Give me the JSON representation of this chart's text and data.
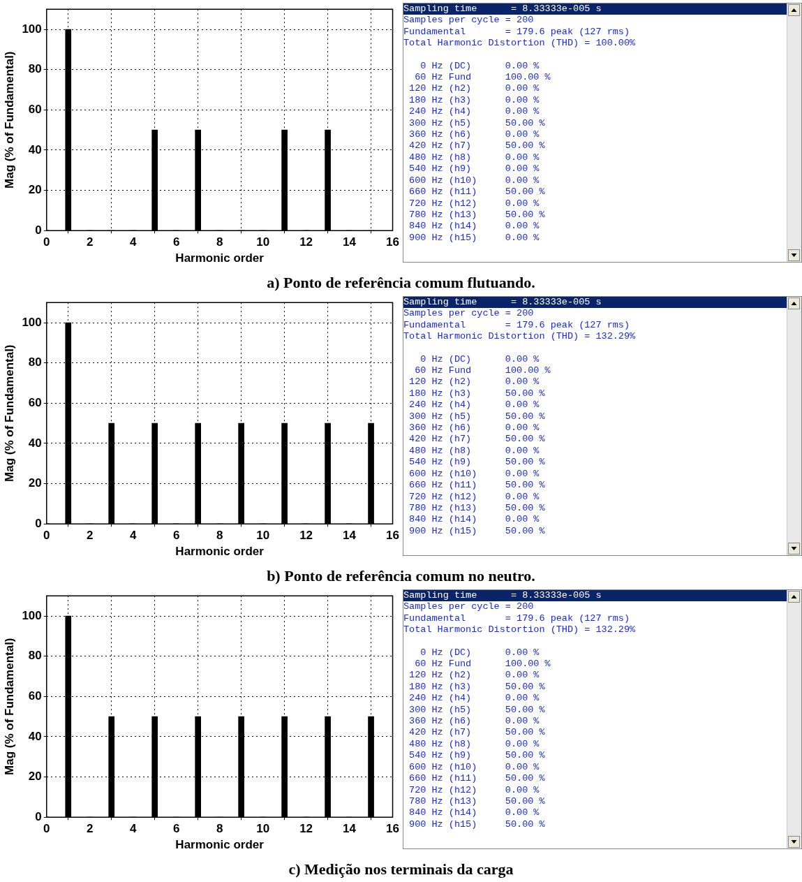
{
  "chart_data": [
    {
      "type": "bar",
      "x": [
        0,
        1,
        2,
        3,
        4,
        5,
        6,
        7,
        8,
        9,
        10,
        11,
        12,
        13,
        14,
        15
      ],
      "values": [
        0,
        100,
        0,
        0,
        0,
        50,
        0,
        50,
        0,
        0,
        0,
        50,
        0,
        50,
        0,
        0
      ],
      "color": "#000000",
      "xlim": [
        0,
        16
      ],
      "xticks": [
        0,
        2,
        4,
        6,
        8,
        10,
        12,
        14,
        16
      ],
      "ylim": [
        0,
        110
      ],
      "yticks": [
        0,
        20,
        40,
        60,
        80,
        100
      ],
      "xlabel": "Harmonic order",
      "ylabel": "Mag (% of Fundamental)",
      "grid": true,
      "annotations": [
        "a) Ponto de referência comum flutuando."
      ]
    },
    {
      "type": "other",
      "annotations": [
        "Sampling time      = 8.33333e-005 s",
        "Samples per cycle = 200",
        "Fundamental       = 179.6 peak (127 rms)",
        "Total Harmonic Distortion (THD) = 100.00%",
        "   0 Hz (DC)      0.00 %",
        "  60 Hz Fund      100.00 %",
        " 120 Hz (h2)      0.00 %",
        " 180 Hz (h3)      0.00 %",
        " 240 Hz (h4)      0.00 %",
        " 300 Hz (h5)      50.00 %",
        " 360 Hz (h6)      0.00 %",
        " 420 Hz (h7)      50.00 %",
        " 480 Hz (h8)      0.00 %",
        " 540 Hz (h9)      0.00 %",
        " 600 Hz (h10)     0.00 %",
        " 660 Hz (h11)     50.00 %",
        " 720 Hz (h12)     0.00 %",
        " 780 Hz (h13)     50.00 %",
        " 840 Hz (h14)     0.00 %",
        " 900 Hz (h15)     0.00 %"
      ]
    },
    {
      "type": "bar",
      "x": [
        0,
        1,
        2,
        3,
        4,
        5,
        6,
        7,
        8,
        9,
        10,
        11,
        12,
        13,
        14,
        15
      ],
      "values": [
        0,
        100,
        0,
        50,
        0,
        50,
        0,
        50,
        0,
        50,
        0,
        50,
        0,
        50,
        0,
        50
      ],
      "color": "#000000",
      "xlim": [
        0,
        16
      ],
      "xticks": [
        0,
        2,
        4,
        6,
        8,
        10,
        12,
        14,
        16
      ],
      "ylim": [
        0,
        110
      ],
      "yticks": [
        0,
        20,
        40,
        60,
        80,
        100
      ],
      "xlabel": "Harmonic order",
      "ylabel": "Mag (% of Fundamental)",
      "grid": true,
      "annotations": [
        "b) Ponto de referência comum no neutro."
      ]
    },
    {
      "type": "other",
      "annotations": [
        "Sampling time      = 8.33333e-005 s",
        "Samples per cycle = 200",
        "Fundamental       = 179.6 peak (127 rms)",
        "Total Harmonic Distortion (THD) = 132.29%",
        "   0 Hz (DC)      0.00 %",
        "  60 Hz Fund      100.00 %",
        " 120 Hz (h2)      0.00 %",
        " 180 Hz (h3)      50.00 %",
        " 240 Hz (h4)      0.00 %",
        " 300 Hz (h5)      50.00 %",
        " 360 Hz (h6)      0.00 %",
        " 420 Hz (h7)      50.00 %",
        " 480 Hz (h8)      0.00 %",
        " 540 Hz (h9)      50.00 %",
        " 600 Hz (h10)     0.00 %",
        " 660 Hz (h11)     50.00 %",
        " 720 Hz (h12)     0.00 %",
        " 780 Hz (h13)     50.00 %",
        " 840 Hz (h14)     0.00 %",
        " 900 Hz (h15)     50.00 %"
      ]
    },
    {
      "type": "bar",
      "x": [
        0,
        1,
        2,
        3,
        4,
        5,
        6,
        7,
        8,
        9,
        10,
        11,
        12,
        13,
        14,
        15
      ],
      "values": [
        0,
        100,
        0,
        50,
        0,
        50,
        0,
        50,
        0,
        50,
        0,
        50,
        0,
        50,
        0,
        50
      ],
      "color": "#000000",
      "xlim": [
        0,
        16
      ],
      "xticks": [
        0,
        2,
        4,
        6,
        8,
        10,
        12,
        14,
        16
      ],
      "ylim": [
        0,
        110
      ],
      "yticks": [
        0,
        20,
        40,
        60,
        80,
        100
      ],
      "xlabel": "Harmonic order",
      "ylabel": "Mag (% of Fundamental)",
      "grid": true,
      "annotations": [
        "c) Medição nos terminais da carga"
      ]
    },
    {
      "type": "other",
      "annotations": [
        "Sampling time      = 8.33333e-005 s",
        "Samples per cycle = 200",
        "Fundamental       = 179.6 peak (127 rms)",
        "Total Harmonic Distortion (THD) = 132.29%",
        "   0 Hz (DC)      0.00 %",
        "  60 Hz Fund      100.00 %",
        " 120 Hz (h2)      0.00 %",
        " 180 Hz (h3)      50.00 %",
        " 240 Hz (h4)      0.00 %",
        " 300 Hz (h5)      50.00 %",
        " 360 Hz (h6)      0.00 %",
        " 420 Hz (h7)      50.00 %",
        " 480 Hz (h8)      0.00 %",
        " 540 Hz (h9)      50.00 %",
        " 600 Hz (h10)     0.00 %",
        " 660 Hz (h11)     50.00 %",
        " 720 Hz (h12)     0.00 %",
        " 780 Hz (h13)     50.00 %",
        " 840 Hz (h14)     0.00 %",
        " 900 Hz (h15)     50.00 %"
      ]
    }
  ]
}
